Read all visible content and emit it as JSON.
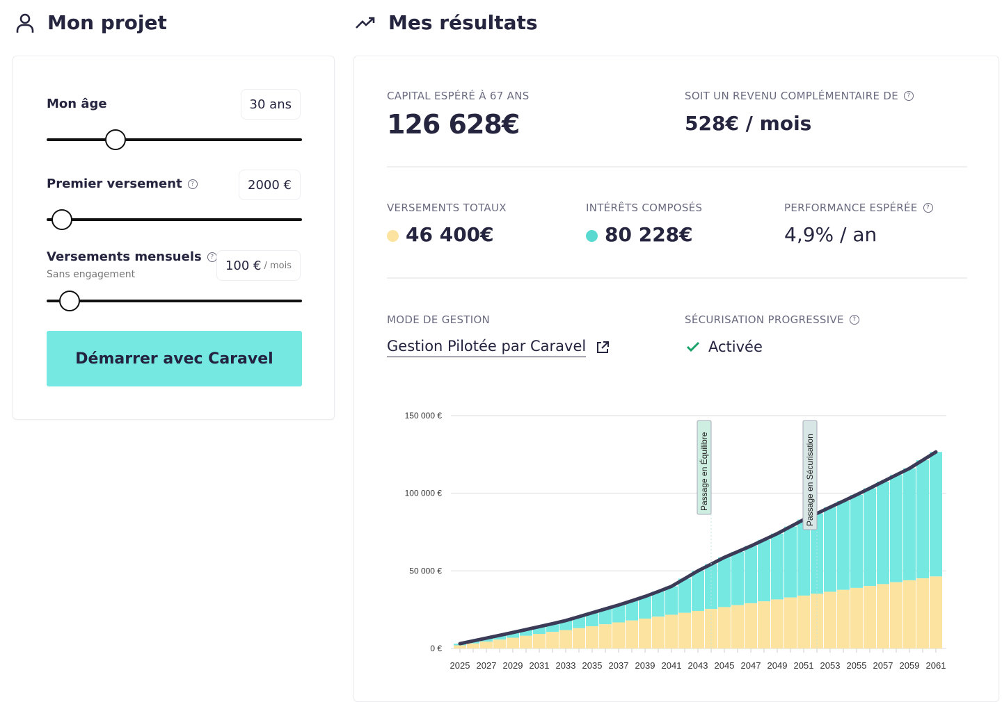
{
  "left": {
    "title": "Mon projet",
    "icon": "user-icon",
    "age": {
      "label": "Mon âge",
      "value": "30 ans",
      "slider": 0.27
    },
    "premier": {
      "label": "Premier versement",
      "value": "2000 €",
      "slider": 0.06
    },
    "mensuels": {
      "label": "Versements mensuels",
      "sub": "Sans engagement",
      "value": "100 €",
      "unit": "/ mois",
      "slider": 0.09
    },
    "cta": "Démarrer avec Caravel"
  },
  "right": {
    "title": "Mes résultats",
    "icon": "trending-up-icon",
    "capital_label": "CAPITAL ESPÉRÉ À 67 ANS",
    "capital": "126 628€",
    "revenu_label": "SOIT UN REVENU COMPLÉMENTAIRE DE",
    "revenu": "528€ / mois",
    "versements_label": "VERSEMENTS TOTAUX",
    "versements": "46 400€",
    "interets_label": "INTÉRÊTS COMPOSÉS",
    "interets": "80 228€",
    "perf_label": "PERFORMANCE ESPÉRÉE",
    "perf": "4,9% / an",
    "mode_label": "MODE DE GESTION",
    "mode": "Gestion Pilotée par Caravel",
    "secu_label": "SÉCURISATION PROGRESSIVE",
    "secu": "Activée"
  },
  "colors": {
    "versements": "#fde3a0",
    "interets": "#74e8e1",
    "line": "#3b3b58",
    "cta": "#74e8e1",
    "check": "#1aa36b"
  },
  "chart_data": {
    "type": "bar",
    "stacked": true,
    "ylim": [
      0,
      150000
    ],
    "grid": true,
    "yticks": [
      "0 €",
      "50 000 €",
      "100 000 €",
      "150 000 €"
    ],
    "ytick_values": [
      0,
      50000,
      100000,
      150000
    ],
    "categories": [
      2025,
      2026,
      2027,
      2028,
      2029,
      2030,
      2031,
      2032,
      2033,
      2034,
      2035,
      2036,
      2037,
      2038,
      2039,
      2040,
      2041,
      2042,
      2043,
      2044,
      2045,
      2046,
      2047,
      2048,
      2049,
      2050,
      2051,
      2052,
      2053,
      2054,
      2055,
      2056,
      2057,
      2058,
      2059,
      2060,
      2061
    ],
    "series": [
      {
        "key": "versements",
        "values": [
          2000,
          3233,
          4467,
          5700,
          6933,
          8167,
          9400,
          10633,
          11867,
          13100,
          14333,
          15567,
          16800,
          18033,
          19267,
          20500,
          21733,
          22967,
          24200,
          25433,
          26667,
          27900,
          29133,
          30367,
          31600,
          32833,
          34067,
          35300,
          36533,
          37767,
          39000,
          40233,
          41467,
          42700,
          43933,
          45167,
          46400
        ]
      },
      {
        "key": "interets",
        "values": [
          1100,
          1667,
          2233,
          2800,
          3367,
          4033,
          4700,
          5367,
          6133,
          7400,
          8667,
          9933,
          11200,
          12667,
          14233,
          16200,
          18267,
          22033,
          25800,
          28867,
          32033,
          34400,
          36867,
          39633,
          42400,
          45667,
          48933,
          51700,
          54467,
          57233,
          60000,
          62967,
          66033,
          69100,
          72067,
          76133,
          80228
        ]
      }
    ],
    "annotations": [
      {
        "year": 2044,
        "text": "Passage en Équilibre"
      },
      {
        "year": 2052,
        "text": "Passage en Sécurisation"
      }
    ]
  }
}
